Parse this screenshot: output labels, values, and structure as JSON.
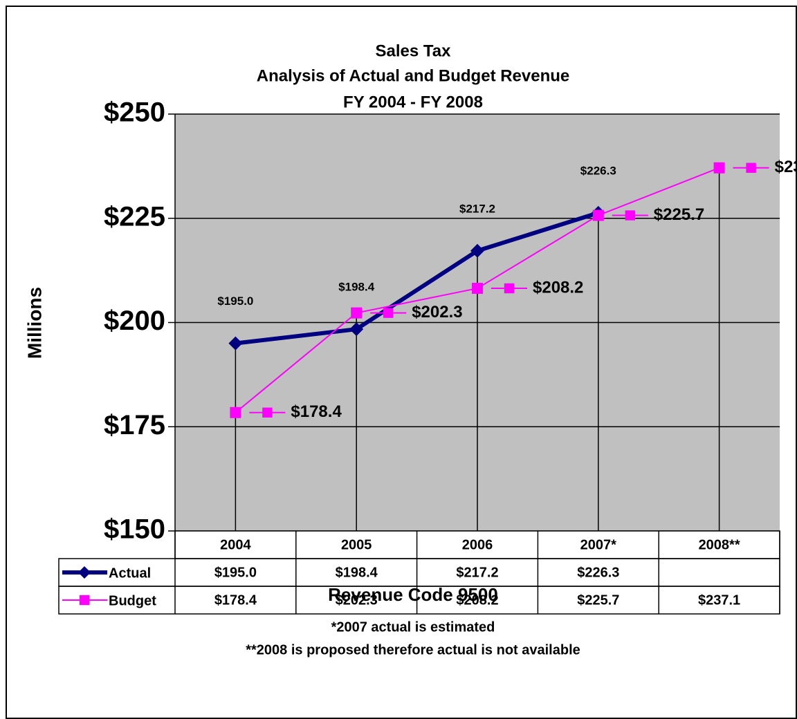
{
  "chart_data": {
    "type": "line",
    "title": [
      "Sales Tax",
      "Analysis of Actual and Budget Revenue",
      "FY 2004 - FY 2008"
    ],
    "y_label": "Millions",
    "x_label": "Revenue Code 9500",
    "notes": [
      "*2007 actual is estimated",
      "**2008 is proposed therefore actual is not available"
    ],
    "categories": [
      "2004",
      "2005",
      "2006",
      "2007*",
      "2008**"
    ],
    "series": [
      {
        "name": "Actual",
        "color": "#000080",
        "marker": "diamond",
        "values": [
          195.0,
          198.4,
          217.2,
          226.3,
          null
        ],
        "value_labels": [
          "$195.0",
          "$198.4",
          "$217.2",
          "$226.3",
          null
        ]
      },
      {
        "name": "Budget",
        "color": "#ff00ff",
        "marker": "square",
        "values": [
          178.4,
          202.3,
          208.2,
          225.7,
          237.1
        ],
        "value_labels": [
          "$178.4",
          "$202.3",
          "$208.2",
          "$225.7",
          "$237.1"
        ]
      }
    ],
    "ylim": [
      150,
      250
    ],
    "yticks": [
      {
        "value": 150,
        "label": "$150"
      },
      {
        "value": 175,
        "label": "$175"
      },
      {
        "value": 200,
        "label": "$200"
      },
      {
        "value": 225,
        "label": "$225"
      },
      {
        "value": 250,
        "label": "$250"
      }
    ],
    "grid": true,
    "plot_background": "#c0c0c0"
  }
}
